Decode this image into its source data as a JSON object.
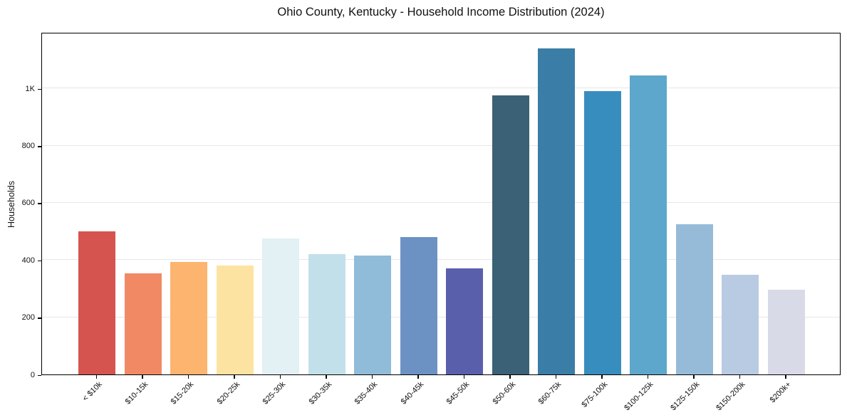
{
  "chart_data": {
    "type": "bar",
    "title": "Ohio County, Kentucky - Household Income Distribution (2024)",
    "xlabel": "",
    "ylabel": "Households",
    "categories": [
      "< $10k",
      "$10-15k",
      "$15-20k",
      "$20-25k",
      "$25-30k",
      "$30-35k",
      "$35-40k",
      "$40-45k",
      "$45-50k",
      "$50-60k",
      "$60-75k",
      "$75-100k",
      "$100-125k",
      "$125-150k",
      "$150-200k",
      "$200k+"
    ],
    "values": [
      500,
      353,
      393,
      380,
      475,
      420,
      415,
      480,
      370,
      975,
      1140,
      990,
      1045,
      525,
      348,
      296
    ],
    "bar_colors": [
      "#d5544f",
      "#f18a64",
      "#fcb46f",
      "#fde3a1",
      "#e3f0f4",
      "#c2e0ea",
      "#90bcd9",
      "#6c92c4",
      "#5a5fab",
      "#3a6175",
      "#3a7da6",
      "#388dbf",
      "#5ca7cb",
      "#96bbd9",
      "#b9cbe2",
      "#d8dae8"
    ],
    "yticks": [
      {
        "value": 0,
        "label": "0"
      },
      {
        "value": 200,
        "label": "200"
      },
      {
        "value": 400,
        "label": "400"
      },
      {
        "value": 600,
        "label": "600"
      },
      {
        "value": 800,
        "label": "800"
      },
      {
        "value": 1000,
        "label": "1K"
      }
    ],
    "ylim": [
      0,
      1197
    ],
    "grid": "horizontal-only",
    "legend": "none",
    "colors": {
      "background": "#ffffff",
      "gridline": "#e7e7e7",
      "axis": "#000000",
      "text": "#111111"
    }
  }
}
